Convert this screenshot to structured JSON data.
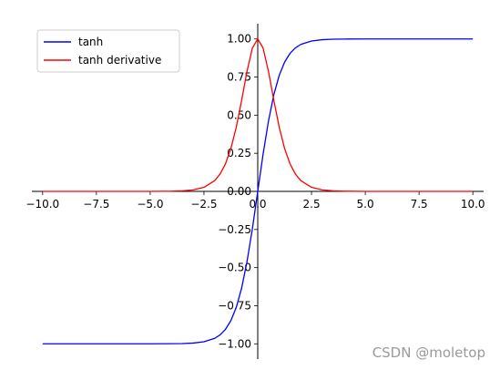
{
  "chart_data": {
    "type": "line",
    "title": "",
    "xlabel": "",
    "ylabel": "",
    "xlim": [
      -10.5,
      10.5
    ],
    "ylim": [
      -1.1,
      1.1
    ],
    "spines": "centered",
    "grid": false,
    "legend_position": "top-left",
    "x_ticks": [
      -10,
      -7.5,
      -5,
      -2.5,
      0,
      2.5,
      5,
      7.5,
      10
    ],
    "x_tick_labels": [
      "−10.0",
      "−7.5",
      "−5.0",
      "−2.5",
      "0.0",
      "2.5",
      "5.0",
      "7.5",
      "10.0"
    ],
    "y_ticks": [
      -1,
      -0.75,
      -0.5,
      -0.25,
      0,
      0.25,
      0.5,
      0.75,
      1
    ],
    "y_tick_labels": [
      "−1.00",
      "−0.75",
      "−0.50",
      "−0.25",
      "0.00",
      "0.25",
      "0.50",
      "0.75",
      "1.00"
    ],
    "series": [
      {
        "name": "tanh",
        "color": "#0000ff",
        "x": [
          -10,
          -5,
          -4,
          -3.5,
          -3,
          -2.5,
          -2,
          -1.75,
          -1.5,
          -1.25,
          -1,
          -0.75,
          -0.5,
          -0.25,
          0,
          0.25,
          0.5,
          0.75,
          1,
          1.25,
          1.5,
          1.75,
          2,
          2.5,
          3,
          3.5,
          4,
          5,
          10
        ],
        "y": [
          -1,
          -0.9999,
          -0.9993,
          -0.9982,
          -0.9951,
          -0.9866,
          -0.964,
          -0.9413,
          -0.9051,
          -0.8483,
          -0.7616,
          -0.6351,
          -0.4621,
          -0.2449,
          0,
          0.2449,
          0.4621,
          0.6351,
          0.7616,
          0.8483,
          0.9051,
          0.9413,
          0.964,
          0.9866,
          0.9951,
          0.9982,
          0.9993,
          0.9999,
          1
        ]
      },
      {
        "name": "tanh derivative",
        "color": "#ff0000",
        "x": [
          -10,
          -5,
          -4,
          -3.5,
          -3,
          -2.5,
          -2,
          -1.75,
          -1.5,
          -1.25,
          -1,
          -0.75,
          -0.5,
          -0.25,
          0,
          0.25,
          0.5,
          0.75,
          1,
          1.25,
          1.5,
          1.75,
          2,
          2.5,
          3,
          3.5,
          4,
          5,
          10
        ],
        "y": [
          0,
          0.0002,
          0.0013,
          0.0036,
          0.0099,
          0.0266,
          0.0707,
          0.114,
          0.1807,
          0.2805,
          0.42,
          0.5966,
          0.7864,
          0.94,
          1,
          0.94,
          0.7864,
          0.5966,
          0.42,
          0.2805,
          0.1807,
          0.114,
          0.0707,
          0.0266,
          0.0099,
          0.0036,
          0.0013,
          0.0002,
          0
        ]
      }
    ]
  },
  "watermark": "CSDN @moletop"
}
